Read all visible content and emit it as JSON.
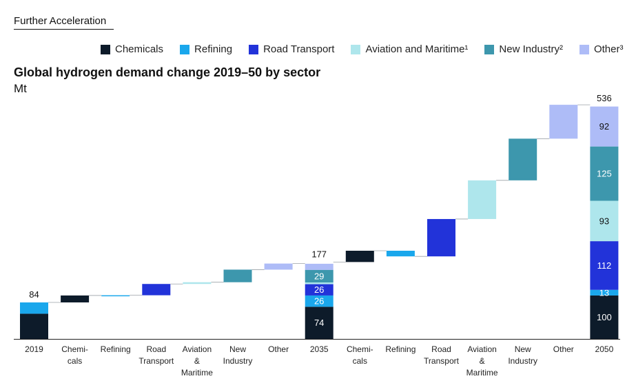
{
  "header": {
    "scenario": "Further Acceleration",
    "title": "Global hydrogen demand change 2019–50 by sector",
    "unit": "Mt"
  },
  "legend": [
    {
      "label": "Chemicals",
      "color": "#0d1b2a"
    },
    {
      "label": "Refining",
      "color": "#1aa7ec"
    },
    {
      "label": "Road Transport",
      "color": "#2233d9"
    },
    {
      "label": "Aviation and Maritime¹",
      "color": "#aee6ec"
    },
    {
      "label": "New Industry²",
      "color": "#3d97ad"
    },
    {
      "label": "Other³",
      "color": "#aebcf7"
    }
  ],
  "chart_data": {
    "type": "waterfall",
    "title": "Global hydrogen demand change 2019–50 by sector",
    "ylabel": "Mt",
    "sectors": [
      "Chemicals",
      "Refining",
      "Road Transport",
      "Aviation and Maritime",
      "New Industry",
      "Other"
    ],
    "colors": {
      "Chemicals": "#0d1b2a",
      "Refining": "#1aa7ec",
      "Road Transport": "#2233d9",
      "Aviation and Maritime": "#aee6ec",
      "New Industry": "#3d97ad",
      "Other": "#aebcf7"
    },
    "bars": [
      {
        "label": "2019",
        "kind": "total",
        "total": 84,
        "total_label": "84",
        "segments": [
          {
            "sector": "Chemicals",
            "value": 58
          },
          {
            "sector": "Refining",
            "value": 26
          }
        ]
      },
      {
        "label": "Chemi-\ncals",
        "kind": "delta",
        "sector": "Chemicals",
        "value": 16
      },
      {
        "label": "Refining",
        "kind": "delta",
        "sector": "Refining",
        "value": 0.5
      },
      {
        "label": "Road\nTransport",
        "kind": "delta",
        "sector": "Road Transport",
        "value": 26
      },
      {
        "label": "Aviation\n&\nMaritime",
        "kind": "delta",
        "sector": "Aviation and Maritime",
        "value": 4
      },
      {
        "label": "New\nIndustry",
        "kind": "delta",
        "sector": "New Industry",
        "value": 29
      },
      {
        "label": "Other",
        "kind": "delta",
        "sector": "Other",
        "value": 14
      },
      {
        "label": "2035",
        "kind": "total",
        "total": 177,
        "total_label": "177",
        "segments": [
          {
            "sector": "Chemicals",
            "value": 74,
            "label": "74"
          },
          {
            "sector": "Refining",
            "value": 26,
            "label": "26"
          },
          {
            "sector": "Road Transport",
            "value": 26,
            "label": "26"
          },
          {
            "sector": "Aviation and Maritime",
            "value": 4
          },
          {
            "sector": "New Industry",
            "value": 29,
            "label": "29"
          },
          {
            "sector": "Other",
            "value": 14
          }
        ]
      },
      {
        "label": "Chemi-\ncals",
        "kind": "delta",
        "sector": "Chemicals",
        "value": 26
      },
      {
        "label": "Refining",
        "kind": "delta",
        "sector": "Refining",
        "value": -13
      },
      {
        "label": "Road\nTransport",
        "kind": "delta",
        "sector": "Road Transport",
        "value": 86
      },
      {
        "label": "Aviation\n&\nMaritime",
        "kind": "delta",
        "sector": "Aviation and Maritime",
        "value": 89
      },
      {
        "label": "New\nIndustry",
        "kind": "delta",
        "sector": "New Industry",
        "value": 96
      },
      {
        "label": "Other",
        "kind": "delta",
        "sector": "Other",
        "value": 78
      },
      {
        "label": "2050",
        "kind": "total",
        "total": 536,
        "total_label": "536",
        "segments": [
          {
            "sector": "Chemicals",
            "value": 100,
            "label": "100"
          },
          {
            "sector": "Refining",
            "value": 13,
            "label": "13"
          },
          {
            "sector": "Road Transport",
            "value": 112,
            "label": "112"
          },
          {
            "sector": "Aviation and Maritime",
            "value": 93,
            "label": "93"
          },
          {
            "sector": "New Industry",
            "value": 125,
            "label": "125"
          },
          {
            "sector": "Other",
            "value": 92,
            "label": "92"
          }
        ]
      }
    ],
    "ylim": [
      0,
      536
    ]
  }
}
